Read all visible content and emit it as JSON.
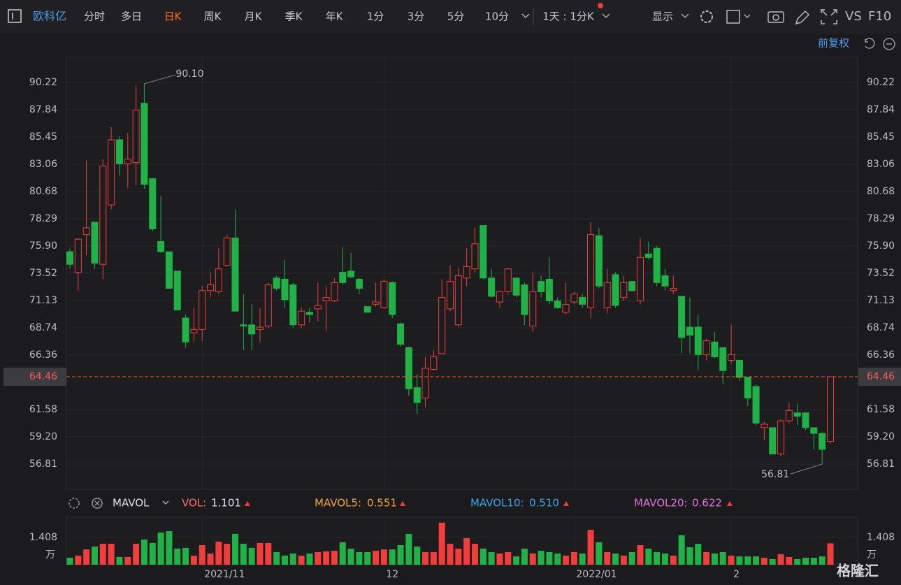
{
  "toolbar": {
    "stock": "欧科亿",
    "tabs": [
      "分时",
      "多日",
      "日K",
      "周K",
      "月K",
      "季K",
      "年K",
      "1分",
      "3分",
      "5分",
      "10分"
    ],
    "active": 2,
    "period": "1天 : 1分K",
    "display": "显示",
    "vs": "VS",
    "f10": "F10",
    "adjust": "前复权"
  },
  "chart_data": {
    "type": "candlestick",
    "up_color": "#f23d3d",
    "down_color": "#1fb347",
    "grid": true,
    "categories": [
      null,
      null,
      null,
      null,
      null,
      null,
      null,
      null,
      null,
      null,
      null,
      null,
      null,
      null,
      null,
      null,
      "2021/11",
      null,
      null,
      null,
      null,
      null,
      null,
      null,
      null,
      null,
      null,
      null,
      null,
      null,
      null,
      null,
      null,
      null,
      null,
      null,
      null,
      null,
      "12",
      null,
      null,
      null,
      null,
      null,
      null,
      null,
      null,
      null,
      null,
      null,
      null,
      null,
      null,
      null,
      null,
      null,
      null,
      null,
      null,
      null,
      null,
      "2022/01",
      null,
      null,
      null,
      null,
      null,
      null,
      null,
      null,
      null,
      null,
      null,
      null,
      null,
      null,
      null,
      null,
      null,
      null,
      "2",
      null,
      null,
      null,
      null,
      null,
      null,
      null,
      null,
      null,
      null,
      null,
      null
    ],
    "open": [
      75.4,
      73.6,
      76.9,
      78.0,
      74.3,
      79.5,
      85.2,
      83.1,
      83.2,
      88.4,
      81.8,
      76.3,
      75.4,
      73.7,
      69.6,
      68.3,
      68.6,
      72.0,
      71.9,
      74.2,
      76.6,
      69.0,
      69.0,
      68.6,
      68.9,
      73.1,
      73.0,
      72.5,
      69.0,
      70.1,
      70.4,
      71.1,
      71.1,
      73.6,
      73.7,
      73.0,
      70.6,
      70.8,
      70.5,
      72.7,
      69.1,
      67.0,
      63.5,
      62.6,
      65.1,
      66.5,
      70.4,
      69.0,
      73.1,
      73.9,
      77.7,
      73.1,
      71.0,
      71.9,
      73.1,
      72.5,
      68.9,
      72.8,
      73.0,
      71.1,
      70.1,
      71.0,
      71.4,
      70.5,
      76.8,
      70.5,
      73.4,
      71.4,
      72.8,
      71.1,
      75.2,
      75.7,
      73.3,
      72.0,
      71.5,
      68.8,
      68.8,
      66.4,
      67.5,
      67.0,
      65.9,
      65.9,
      64.4,
      63.6,
      60.0,
      60.0,
      57.7,
      60.6,
      61.3,
      61.3,
      60.0,
      59.5,
      58.8
    ],
    "high": [
      75.7,
      76.6,
      83.4,
      78.0,
      83.5,
      86.3,
      85.5,
      85.8,
      90.0,
      90.1,
      81.8,
      80.3,
      75.4,
      73.7,
      69.9,
      70.5,
      72.4,
      73.6,
      75.7,
      76.9,
      79.1,
      71.7,
      70.8,
      70.5,
      72.7,
      73.3,
      74.7,
      72.7,
      70.5,
      70.5,
      72.7,
      72.4,
      73.1,
      75.8,
      75.3,
      73.1,
      70.6,
      72.7,
      73.0,
      72.8,
      69.2,
      67.1,
      64.7,
      66.2,
      66.8,
      73.0,
      74.2,
      74.0,
      75.7,
      77.5,
      77.7,
      73.9,
      72.0,
      74.0,
      73.1,
      72.7,
      73.6,
      73.3,
      74.9,
      71.4,
      72.7,
      71.9,
      71.7,
      78.0,
      77.5,
      73.9,
      73.6,
      73.3,
      72.8,
      76.6,
      76.3,
      75.9,
      73.9,
      73.3,
      71.5,
      71.4,
      69.9,
      67.8,
      68.4,
      67.0,
      69.0,
      65.9,
      64.4,
      63.8,
      60.5,
      60.0,
      60.7,
      62.2,
      62.1,
      61.3,
      60.0,
      59.6,
      64.46
    ],
    "low": [
      73.9,
      72.0,
      75.1,
      73.9,
      73.0,
      79.1,
      82.1,
      81.0,
      81.2,
      80.9,
      77.2,
      75.3,
      72.2,
      70.3,
      67.0,
      67.5,
      67.6,
      71.4,
      71.7,
      74.1,
      70.2,
      66.8,
      66.8,
      67.5,
      68.7,
      72.0,
      70.5,
      68.7,
      68.7,
      69.2,
      69.3,
      68.4,
      71.0,
      72.5,
      73.1,
      71.7,
      70.1,
      70.6,
      70.4,
      69.6,
      67.1,
      62.8,
      61.2,
      61.8,
      65.0,
      66.5,
      70.2,
      68.8,
      72.4,
      73.6,
      73.0,
      71.4,
      70.5,
      71.7,
      71.4,
      69.0,
      68.4,
      71.4,
      70.8,
      70.4,
      69.9,
      70.8,
      70.5,
      69.6,
      72.2,
      70.0,
      70.5,
      71.1,
      71.9,
      70.8,
      74.7,
      72.4,
      72.0,
      71.7,
      66.5,
      66.5,
      65.0,
      65.9,
      66.1,
      63.8,
      65.6,
      64.1,
      61.9,
      60.2,
      58.9,
      57.7,
      57.5,
      60.4,
      60.2,
      59.8,
      58.1,
      56.81,
      58.6
    ],
    "close": [
      74.3,
      76.5,
      77.5,
      74.4,
      82.9,
      85.2,
      83.1,
      83.5,
      87.8,
      81.3,
      77.4,
      75.4,
      72.2,
      70.3,
      67.5,
      68.6,
      72.0,
      72.5,
      73.9,
      76.6,
      70.2,
      68.9,
      68.2,
      68.8,
      72.5,
      72.2,
      71.2,
      69.0,
      70.2,
      69.9,
      70.7,
      71.4,
      72.7,
      72.7,
      73.2,
      72.2,
      70.1,
      71.0,
      72.8,
      69.9,
      67.3,
      63.4,
      62.2,
      65.2,
      66.2,
      71.4,
      72.8,
      73.3,
      74.1,
      76.1,
      73.1,
      71.5,
      71.9,
      73.9,
      71.6,
      69.9,
      71.9,
      71.9,
      71.1,
      70.5,
      70.8,
      71.7,
      70.8,
      76.9,
      72.4,
      72.7,
      70.7,
      72.7,
      72.0,
      74.9,
      74.9,
      72.7,
      72.4,
      72.2,
      67.9,
      68.1,
      66.4,
      67.6,
      66.2,
      65.0,
      66.4,
      64.4,
      62.6,
      60.4,
      60.3,
      57.7,
      60.6,
      61.5,
      61.0,
      60.0,
      59.5,
      58.1,
      64.46
    ],
    "ylim": [
      54.61,
      92.42
    ],
    "yticks": [
      90.22,
      87.84,
      85.45,
      83.06,
      80.68,
      78.29,
      {
        "value": 75.9,
        "label": "75.90"
      },
      73.52,
      71.13,
      68.74,
      66.36,
      61.58,
      {
        "value": 59.2,
        "label": "59.20"
      },
      56.81
    ],
    "annotations": [
      {
        "value": 90.1,
        "label": "90.10"
      },
      {
        "value": 56.81,
        "label": "56.81"
      }
    ],
    "volume": {
      "title": "MAVOL",
      "unit": "万",
      "ylim": [
        0,
        2.45
      ],
      "yticks": [
        1.408
      ],
      "values": [
        0.36,
        0.47,
        0.79,
        0.94,
        1.08,
        1.08,
        0.4,
        0.4,
        1.08,
        1.3,
        1.12,
        1.66,
        1.73,
        0.83,
        0.87,
        0.47,
        1.01,
        0.58,
        1.19,
        1.08,
        1.59,
        1.08,
        0.87,
        1.12,
        1.12,
        0.65,
        0.47,
        0.58,
        0.47,
        0.58,
        0.65,
        0.69,
        0.72,
        1.16,
        0.83,
        0.65,
        0.65,
        0.72,
        0.79,
        0.79,
        1.01,
        1.59,
        0.94,
        0.65,
        0.65,
        2.17,
        1.08,
        0.83,
        1.37,
        1.08,
        0.83,
        0.65,
        0.58,
        0.65,
        0.43,
        0.83,
        0.58,
        0.72,
        0.65,
        0.58,
        0.47,
        0.65,
        0.58,
        1.8,
        1.16,
        0.65,
        0.58,
        0.47,
        0.65,
        1.01,
        0.83,
        0.65,
        0.58,
        0.47,
        1.52,
        0.9,
        1.08,
        0.65,
        0.58,
        0.65,
        0.47,
        0.43,
        0.43,
        0.43,
        0.36,
        0.29,
        0.54,
        0.4,
        0.29,
        0.36,
        0.36,
        0.43,
        1.101
      ],
      "legend": [
        {
          "name": "VOL:",
          "value": 1.101,
          "color": "#ff6f6f",
          "value_color": "#e0e0e0"
        },
        {
          "name": "MAVOL5:",
          "value": 0.551,
          "color": "#f2a33a",
          "value_color": "#f2a33a"
        },
        {
          "name": "MAVOL10:",
          "value": {
            "value": 0.51,
            "label": "0.510"
          },
          "color": "#3aa6e8",
          "value_color": "#3aa6e8"
        },
        {
          "name": "MAVOL20:",
          "value": 0.622,
          "color": "#e072e0",
          "value_color": "#e072e0"
        }
      ]
    }
  },
  "watermark": "格隆汇"
}
